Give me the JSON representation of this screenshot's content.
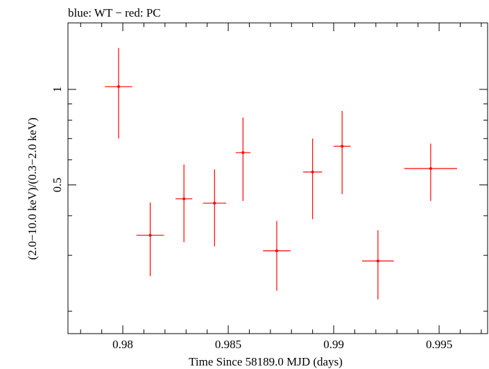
{
  "chart_data": {
    "type": "scatter",
    "title": "blue: WT − red: PC",
    "xlabel": "Time Since 58189.0 MJD (days)",
    "ylabel": "(2.0−10.0 keV)/(0.3−2.0 keV)",
    "xlim": [
      0.9774,
      0.9973
    ],
    "ylim": [
      0.17,
      1.62
    ],
    "y_scale": "log",
    "x_ticks": [
      0.98,
      0.985,
      0.99,
      0.995
    ],
    "x_tick_labels": [
      "0.98",
      "0.985",
      "0.99",
      "0.995"
    ],
    "y_ticks": [
      0.5,
      1
    ],
    "y_tick_labels": [
      "0.5",
      "1"
    ],
    "series": [
      {
        "name": "PC",
        "color": "#ff0000",
        "points": [
          {
            "x": 0.9798,
            "y": 1.02,
            "xerr": 0.00065,
            "ylo": 0.7,
            "yhi": 1.35
          },
          {
            "x": 0.9813,
            "y": 0.347,
            "xerr": 0.00065,
            "ylo": 0.258,
            "yhi": 0.44
          },
          {
            "x": 0.9829,
            "y": 0.452,
            "xerr": 0.0004,
            "ylo": 0.33,
            "yhi": 0.58
          },
          {
            "x": 0.98435,
            "y": 0.438,
            "xerr": 0.00055,
            "ylo": 0.32,
            "yhi": 0.56
          },
          {
            "x": 0.9857,
            "y": 0.632,
            "xerr": 0.00035,
            "ylo": 0.445,
            "yhi": 0.815
          },
          {
            "x": 0.9873,
            "y": 0.31,
            "xerr": 0.00065,
            "ylo": 0.232,
            "yhi": 0.385
          },
          {
            "x": 0.989,
            "y": 0.549,
            "xerr": 0.00045,
            "ylo": 0.39,
            "yhi": 0.7
          },
          {
            "x": 0.9904,
            "y": 0.662,
            "xerr": 0.0004,
            "ylo": 0.468,
            "yhi": 0.855
          },
          {
            "x": 0.9921,
            "y": 0.288,
            "xerr": 0.00075,
            "ylo": 0.218,
            "yhi": 0.36
          },
          {
            "x": 0.9946,
            "y": 0.563,
            "xerr": 0.00125,
            "ylo": 0.445,
            "yhi": 0.675
          }
        ]
      }
    ],
    "grid": false
  }
}
